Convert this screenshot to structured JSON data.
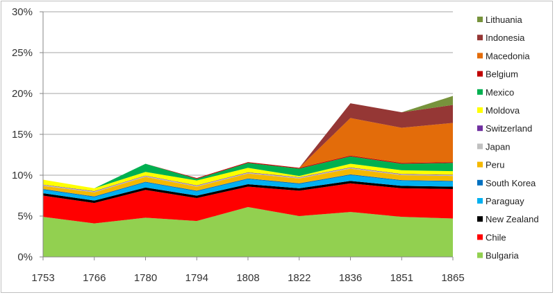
{
  "chart_data": {
    "type": "area",
    "stacked": true,
    "x": [
      "1753",
      "1766",
      "1780",
      "1794",
      "1808",
      "1822",
      "1836",
      "1851",
      "1865"
    ],
    "ylim": [
      0,
      30
    ],
    "yticks": [
      "0%",
      "5%",
      "10%",
      "15%",
      "20%",
      "25%",
      "30%"
    ],
    "grid": true,
    "legend": "right",
    "series": [
      {
        "name": "Bulgaria",
        "color": "#92d050",
        "values": [
          4.9,
          4.1,
          4.8,
          4.4,
          6.1,
          5.0,
          5.5,
          4.9,
          4.7
        ]
      },
      {
        "name": "Chile",
        "color": "#ff0000",
        "values": [
          2.6,
          2.5,
          3.4,
          2.8,
          2.5,
          3.1,
          3.5,
          3.5,
          3.6
        ]
      },
      {
        "name": "New Zealand",
        "color": "#000000",
        "values": [
          0.3,
          0.3,
          0.3,
          0.3,
          0.3,
          0.3,
          0.3,
          0.3,
          0.3
        ]
      },
      {
        "name": "Paraguay",
        "color": "#00b0f0",
        "values": [
          0.4,
          0.4,
          0.6,
          0.5,
          0.6,
          0.5,
          0.7,
          0.6,
          0.6
        ]
      },
      {
        "name": "South Korea",
        "color": "#0070c0",
        "values": [
          0.1,
          0.1,
          0.1,
          0.1,
          0.1,
          0.1,
          0.1,
          0.1,
          0.1
        ]
      },
      {
        "name": "Peru",
        "color": "#f5b800",
        "values": [
          0.4,
          0.5,
          0.6,
          0.5,
          0.6,
          0.6,
          0.7,
          0.6,
          0.6
        ]
      },
      {
        "name": "Japan",
        "color": "#c0c0c0",
        "values": [
          0.1,
          0.1,
          0.1,
          0.1,
          0.1,
          0.1,
          0.1,
          0.1,
          0.1
        ]
      },
      {
        "name": "Switzerland",
        "color": "#7030a0",
        "values": [
          0.05,
          0.05,
          0.05,
          0.05,
          0.05,
          0.05,
          0.05,
          0.05,
          0.05
        ]
      },
      {
        "name": "Moldova",
        "color": "#ffff00",
        "values": [
          0.6,
          0.35,
          0.45,
          0.6,
          0.55,
          0.15,
          0.45,
          0.45,
          0.45
        ]
      },
      {
        "name": "Mexico",
        "color": "#00b050",
        "values": [
          0.0,
          0.0,
          1.0,
          0.2,
          0.6,
          0.9,
          0.9,
          0.8,
          1.0
        ]
      },
      {
        "name": "Belgium",
        "color": "#c00000",
        "values": [
          0.0,
          0.0,
          0.0,
          0.1,
          0.1,
          0.1,
          0.1,
          0.1,
          0.1
        ]
      },
      {
        "name": "Macedonia",
        "color": "#e36c0a",
        "values": [
          0.0,
          0.0,
          0.0,
          0.0,
          0.0,
          0.0,
          4.6,
          4.3,
          4.8
        ]
      },
      {
        "name": "Indonesia",
        "color": "#953735",
        "values": [
          0.0,
          0.0,
          0.0,
          0.0,
          0.0,
          0.0,
          1.8,
          1.9,
          2.2
        ]
      },
      {
        "name": "Lithuania",
        "color": "#77933c",
        "values": [
          0.0,
          0.0,
          0.0,
          0.0,
          0.0,
          0.0,
          0.0,
          0.0,
          1.1
        ]
      }
    ]
  }
}
